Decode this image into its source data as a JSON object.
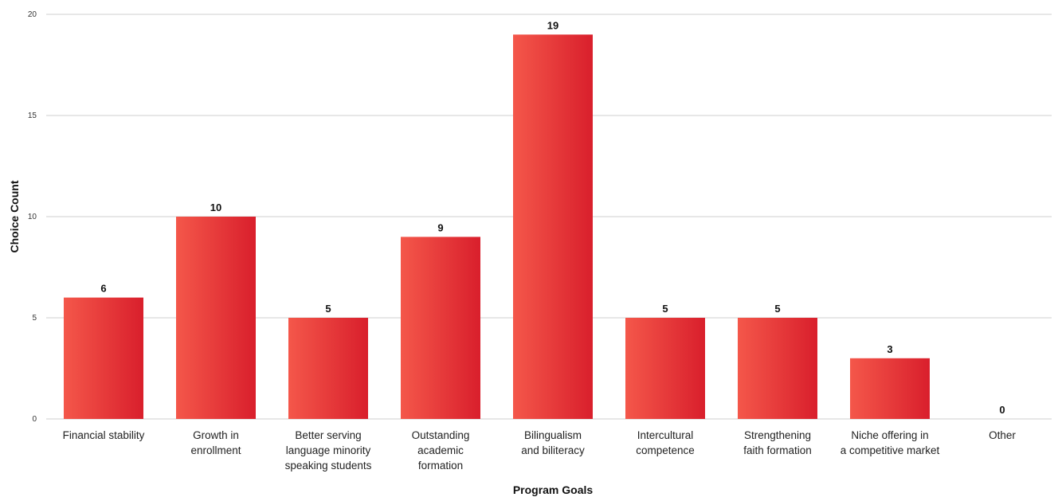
{
  "chart_data": {
    "type": "bar",
    "title": "",
    "xlabel": "Program Goals",
    "ylabel": "Choice Count",
    "ylim": [
      0,
      20
    ],
    "yticks": [
      0,
      5,
      10,
      15,
      20
    ],
    "grid": true,
    "legend": "none",
    "categories": [
      [
        "Financial stability"
      ],
      [
        "Growth in",
        "enrollment"
      ],
      [
        "Better serving",
        "language minority",
        "speaking students"
      ],
      [
        "Outstanding",
        "academic",
        "formation"
      ],
      [
        "Bilingualism",
        "and biliteracy"
      ],
      [
        "Intercultural",
        "competence"
      ],
      [
        "Strengthening",
        "faith formation"
      ],
      [
        "Niche offering in",
        "a competitive market"
      ],
      [
        "Other"
      ]
    ],
    "values": [
      6,
      10,
      5,
      9,
      19,
      5,
      5,
      3,
      0
    ],
    "colors": {
      "bar_light": "#f4574a",
      "bar_dark": "#d91f2c",
      "grid": "#cfcfcf"
    }
  }
}
